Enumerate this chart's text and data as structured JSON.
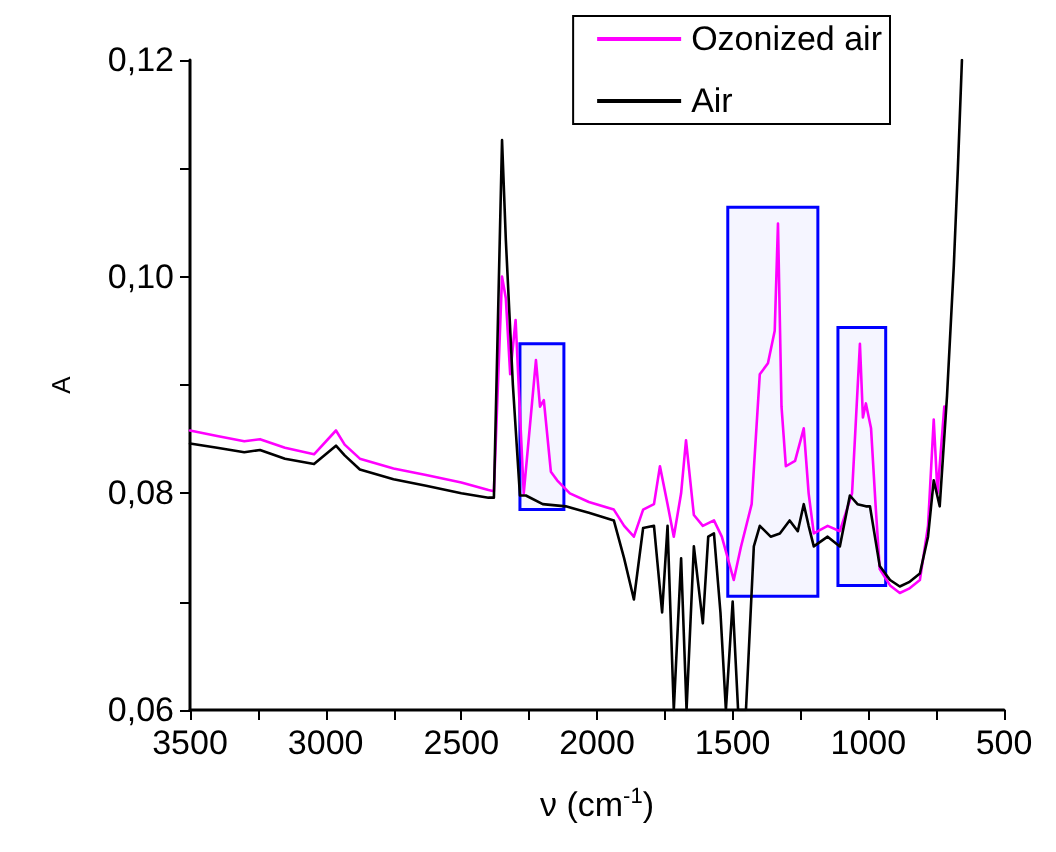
{
  "chart_data": {
    "type": "line",
    "xlabel": "ν (cm$^{-1}$)",
    "ylabel": "A",
    "xlim": [
      3500,
      500
    ],
    "xticks": [
      3500,
      {
        "value": 3250,
        "label": null
      },
      3000,
      {
        "value": 2750,
        "label": null
      },
      2500,
      {
        "value": 2250,
        "label": null
      },
      2000,
      {
        "value": 1750,
        "label": null
      },
      1500,
      {
        "value": 1250,
        "label": null
      },
      1000,
      {
        "value": 750,
        "label": null
      },
      500
    ],
    "ylim": [
      0.06,
      0.12
    ],
    "yticks": [
      {
        "value": 0.06,
        "label": "0,06"
      },
      {
        "value": 0.07,
        "label": null
      },
      {
        "value": 0.08,
        "label": "0,08"
      },
      {
        "value": 0.09,
        "label": null
      },
      {
        "value": 0.1,
        "label": "0,10"
      },
      {
        "value": 0.11,
        "label": null
      },
      {
        "value": 0.12,
        "label": "0,12"
      }
    ],
    "grid": false,
    "legend": "top right",
    "marker": "none",
    "line_style": "solid",
    "bands": [
      {
        "axis": "x",
        "from": 2284,
        "to": 2122,
        "color": "#0000ff"
      },
      {
        "axis": "x",
        "from": 1518,
        "to": 1186,
        "color": "#0000ff"
      },
      {
        "axis": "x",
        "from": 1112,
        "to": 936,
        "color": "#0000ff"
      }
    ],
    "series": [
      {
        "name": "Ozonized air",
        "color": "#ff00ff",
        "x": [
          3500,
          3400,
          3300,
          3242,
          3150,
          3043,
          2962,
          2930,
          2874,
          2750,
          2630,
          2500,
          2400,
          2380,
          2350,
          2336,
          2320,
          2300,
          2270,
          2225,
          2210,
          2196,
          2170,
          2147,
          2100,
          2030,
          1938,
          1900,
          1864,
          1830,
          1790,
          1768,
          1740,
          1717,
          1690,
          1672,
          1643,
          1610,
          1569,
          1540,
          1496,
          1470,
          1430,
          1400,
          1370,
          1345,
          1333,
          1320,
          1304,
          1270,
          1238,
          1220,
          1201,
          1150,
          1105,
          1060,
          1031,
          1020,
          1009,
          990,
          973,
          958,
          920,
          884,
          850,
          810,
          780,
          759,
          745,
          720
        ],
        "values": [
          0.0858,
          0.0853,
          0.0848,
          0.085,
          0.0842,
          0.0836,
          0.0858,
          0.0845,
          0.0832,
          0.0823,
          0.0817,
          0.081,
          0.0803,
          0.0802,
          0.1,
          0.098,
          0.091,
          0.096,
          0.08,
          0.0923,
          0.088,
          0.0886,
          0.082,
          0.0812,
          0.08,
          0.0792,
          0.0785,
          0.077,
          0.076,
          0.0785,
          0.079,
          0.0825,
          0.079,
          0.076,
          0.08,
          0.0849,
          0.078,
          0.077,
          0.0775,
          0.076,
          0.072,
          0.075,
          0.079,
          0.091,
          0.092,
          0.095,
          0.1049,
          0.088,
          0.0825,
          0.083,
          0.086,
          0.08,
          0.0763,
          0.077,
          0.0765,
          0.08,
          0.0938,
          0.087,
          0.0883,
          0.086,
          0.0788,
          0.073,
          0.0715,
          0.0708,
          0.0712,
          0.072,
          0.077,
          0.0868,
          0.08,
          0.088
        ]
      },
      {
        "name": "Air",
        "color": "#000000",
        "x": [
          3500,
          3400,
          3300,
          3242,
          3150,
          3043,
          2962,
          2930,
          2874,
          2750,
          2630,
          2500,
          2400,
          2380,
          2350,
          2336,
          2310,
          2284,
          2262,
          2200,
          2115,
          2030,
          1938,
          1900,
          1864,
          1830,
          1790,
          1760,
          1740,
          1717,
          1690,
          1670,
          1643,
          1610,
          1590,
          1569,
          1545,
          1525,
          1500,
          1480,
          1451,
          1422,
          1400,
          1360,
          1326,
          1290,
          1260,
          1238,
          1220,
          1201,
          1150,
          1105,
          1068,
          1040,
          1009,
          994,
          958,
          920,
          884,
          850,
          810,
          780,
          759,
          737,
          710,
          685,
          670,
          655
        ],
        "values": [
          0.0846,
          0.0842,
          0.0838,
          0.084,
          0.0832,
          0.0827,
          0.0844,
          0.0835,
          0.0822,
          0.0813,
          0.0807,
          0.08,
          0.0796,
          0.0796,
          0.1126,
          0.1034,
          0.09,
          0.0798,
          0.0798,
          0.079,
          0.0788,
          0.0782,
          0.0775,
          0.074,
          0.0702,
          0.0768,
          0.077,
          0.069,
          0.077,
          0.06,
          0.074,
          0.06,
          0.0751,
          0.068,
          0.076,
          0.0763,
          0.069,
          0.06,
          0.07,
          0.06,
          0.06,
          0.0751,
          0.077,
          0.076,
          0.0763,
          0.0775,
          0.0765,
          0.079,
          0.077,
          0.0751,
          0.076,
          0.0751,
          0.0798,
          0.079,
          0.0788,
          0.0788,
          0.0733,
          0.072,
          0.0714,
          0.0718,
          0.0726,
          0.076,
          0.0812,
          0.0788,
          0.089,
          0.101,
          0.11,
          0.12
        ]
      }
    ]
  }
}
